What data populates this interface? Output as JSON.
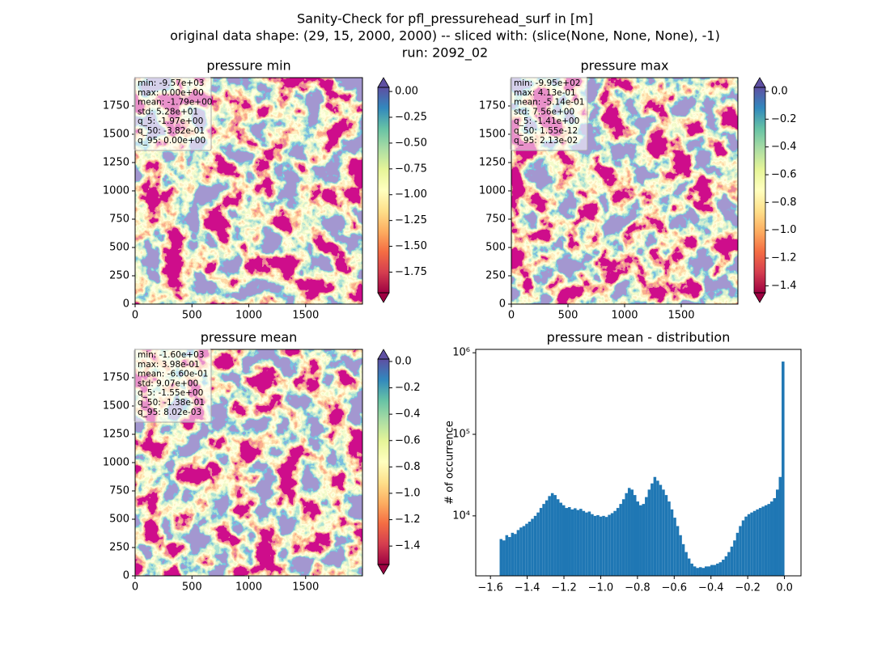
{
  "title": [
    "Sanity-Check for pfl_pressurehead_surf in [m]",
    "original data shape: (29, 15, 2000, 2000) -- sliced with: (slice(None, None, None), -1)",
    "run: 2092_02"
  ],
  "colormap": [
    "#9e0142",
    "#d53e4f",
    "#f46d43",
    "#fdae61",
    "#fee08b",
    "#ffffbf",
    "#e6f598",
    "#abdda4",
    "#66c2a5",
    "#3288bd",
    "#5e4fa2"
  ],
  "chart_data": [
    {
      "type": "heatmap",
      "title": "pressure min",
      "stats": [
        "min: -9.57e+03",
        "max: 0.00e+00",
        "mean: -1.79e+00",
        "std: 5.28e+01",
        "q_5: -1.97e+00",
        "q_50: -3.82e-01",
        "q_95: 0.00e+00"
      ],
      "xlim": [
        0,
        2000
      ],
      "ylim": [
        0,
        2000
      ],
      "xticks": [
        0,
        500,
        1000,
        1500
      ],
      "yticks": [
        0,
        250,
        500,
        750,
        1000,
        1250,
        1500,
        1750
      ],
      "clim": [
        -1.95,
        0.04
      ],
      "extend": "both",
      "cticks": [
        {
          "value": 0,
          "label": "0.00"
        },
        {
          "value": -0.25,
          "label": "−0.25"
        },
        {
          "value": -0.5,
          "label": "−0.50"
        },
        {
          "value": -0.75,
          "label": "−0.75"
        },
        {
          "value": -1,
          "label": "−1.00"
        },
        {
          "value": -1.25,
          "label": "−1.25"
        },
        {
          "value": -1.5,
          "label": "−1.50"
        },
        {
          "value": -1.75,
          "label": "−1.75"
        }
      ]
    },
    {
      "type": "heatmap",
      "title": "pressure max",
      "stats": [
        "min: -9.95e+02",
        "max: 4.13e-01",
        "mean: -5.14e-01",
        "std: 7.56e+00",
        "q_5: -1.41e+00",
        "q_50: 1.55e-12",
        "q_95: 2.13e-02"
      ],
      "xlim": [
        0,
        2000
      ],
      "ylim": [
        0,
        2000
      ],
      "xticks": [
        0,
        500,
        1000,
        1500
      ],
      "yticks": [
        0,
        250,
        500,
        750,
        1000,
        1250,
        1500,
        1750
      ],
      "clim": [
        -1.45,
        0.029
      ],
      "extend": "both",
      "cticks": [
        {
          "value": 0,
          "label": "0.0"
        },
        {
          "value": -0.2,
          "label": "−0.2"
        },
        {
          "value": -0.4,
          "label": "−0.4"
        },
        {
          "value": -0.6,
          "label": "−0.6"
        },
        {
          "value": -0.8,
          "label": "−0.8"
        },
        {
          "value": -1,
          "label": "−1.0"
        },
        {
          "value": -1.2,
          "label": "−1.2"
        },
        {
          "value": -1.4,
          "label": "−1.4"
        }
      ]
    },
    {
      "type": "heatmap",
      "title": "pressure mean",
      "stats": [
        "min: -1.60e+03",
        "max: 3.98e-01",
        "mean: -6.60e-01",
        "std: 9.07e+00",
        "q_5: -1.55e+00",
        "q_50: -1.38e-01",
        "q_95: 8.02e-03"
      ],
      "xlim": [
        0,
        2000
      ],
      "ylim": [
        0,
        2000
      ],
      "xticks": [
        0,
        500,
        1000,
        1500
      ],
      "yticks": [
        0,
        250,
        500,
        750,
        1000,
        1250,
        1500,
        1750
      ],
      "clim": [
        -1.54,
        0.018
      ],
      "extend": "both",
      "cticks": [
        {
          "value": 0,
          "label": "0.0"
        },
        {
          "value": -0.2,
          "label": "−0.2"
        },
        {
          "value": -0.4,
          "label": "−0.4"
        },
        {
          "value": -0.6,
          "label": "−0.6"
        },
        {
          "value": -0.8,
          "label": "−0.8"
        },
        {
          "value": -1,
          "label": "−1.0"
        },
        {
          "value": -1.2,
          "label": "−1.2"
        },
        {
          "value": -1.4,
          "label": "−1.4"
        }
      ]
    },
    {
      "type": "histogram",
      "title": "pressure mean - distribution",
      "ylabel": "# of occurrence",
      "color": "#1f77b4",
      "log_y": true,
      "xlim": [
        -1.68,
        0.09
      ],
      "ylim": [
        1840,
        1100000
      ],
      "xticks": [
        {
          "value": -1.6,
          "label": "−1.6"
        },
        {
          "value": -1.4,
          "label": "−1.4"
        },
        {
          "value": -1.2,
          "label": "−1.2"
        },
        {
          "value": -1,
          "label": "−1.0"
        },
        {
          "value": -0.8,
          "label": "−0.8"
        },
        {
          "value": -0.6,
          "label": "−0.6"
        },
        {
          "value": -0.4,
          "label": "−0.4"
        },
        {
          "value": -0.2,
          "label": "−0.2"
        },
        {
          "value": 0,
          "label": "0.0"
        }
      ],
      "yticks": [
        {
          "value": 10000,
          "label": "10⁴"
        },
        {
          "value": 100000,
          "label": "10⁵"
        },
        {
          "value": 1000000,
          "label": "10⁶"
        }
      ],
      "bins": [
        -1.55,
        -1.5345,
        -1.519,
        -1.5035,
        -1.488,
        -1.4725,
        -1.457,
        -1.4415,
        -1.426,
        -1.4105,
        -1.395,
        -1.3795,
        -1.364,
        -1.3485,
        -1.333,
        -1.3175,
        -1.302,
        -1.2865,
        -1.271,
        -1.2555,
        -1.24,
        -1.2245,
        -1.209,
        -1.1935,
        -1.178,
        -1.1625,
        -1.147,
        -1.1315,
        -1.116,
        -1.1005,
        -1.085,
        -1.0695,
        -1.054,
        -1.0385,
        -1.023,
        -1.0075,
        -0.992,
        -0.9765,
        -0.961,
        -0.9455,
        -0.93,
        -0.9145,
        -0.899,
        -0.8835,
        -0.868,
        -0.8525,
        -0.837,
        -0.8215,
        -0.806,
        -0.7905,
        -0.775,
        -0.7595,
        -0.744,
        -0.7285,
        -0.713,
        -0.6975,
        -0.682,
        -0.6665,
        -0.651,
        -0.6355,
        -0.62,
        -0.6045,
        -0.589,
        -0.5735,
        -0.558,
        -0.5425,
        -0.527,
        -0.5115,
        -0.496,
        -0.4805,
        -0.465,
        -0.4495,
        -0.434,
        -0.4185,
        -0.403,
        -0.3875,
        -0.372,
        -0.3565,
        -0.341,
        -0.3255,
        -0.31,
        -0.2945,
        -0.279,
        -0.2635,
        -0.248,
        -0.2325,
        -0.217,
        -0.2015,
        -0.186,
        -0.1705,
        -0.155,
        -0.1395,
        -0.124,
        -0.1085,
        -0.093,
        -0.0775,
        -0.062,
        -0.0465,
        -0.031,
        -0.0155,
        0
      ],
      "values": [
        5200,
        5000,
        5800,
        5500,
        6200,
        6000,
        6700,
        7200,
        7500,
        8000,
        8500,
        9200,
        10000,
        11000,
        12500,
        14000,
        15500,
        17500,
        19000,
        18000,
        16000,
        14500,
        13500,
        12500,
        12800,
        12000,
        12400,
        11800,
        12200,
        11500,
        11000,
        11300,
        10500,
        10000,
        10200,
        9800,
        10000,
        9700,
        10300,
        10800,
        11500,
        12500,
        14000,
        16000,
        19000,
        22000,
        21000,
        18000,
        15000,
        13500,
        14000,
        17000,
        21000,
        25000,
        30000,
        27000,
        24000,
        21000,
        18000,
        15000,
        12000,
        9500,
        7500,
        5800,
        4500,
        3600,
        3000,
        2600,
        2400,
        2300,
        2350,
        2300,
        2400,
        2400,
        2500,
        2500,
        2600,
        2700,
        2900,
        3200,
        3600,
        4200,
        5000,
        6200,
        7500,
        8800,
        9800,
        10500,
        11000,
        11500,
        12000,
        12500,
        13000,
        13500,
        14000,
        15000,
        16500,
        21000,
        30000,
        780000
      ]
    }
  ]
}
